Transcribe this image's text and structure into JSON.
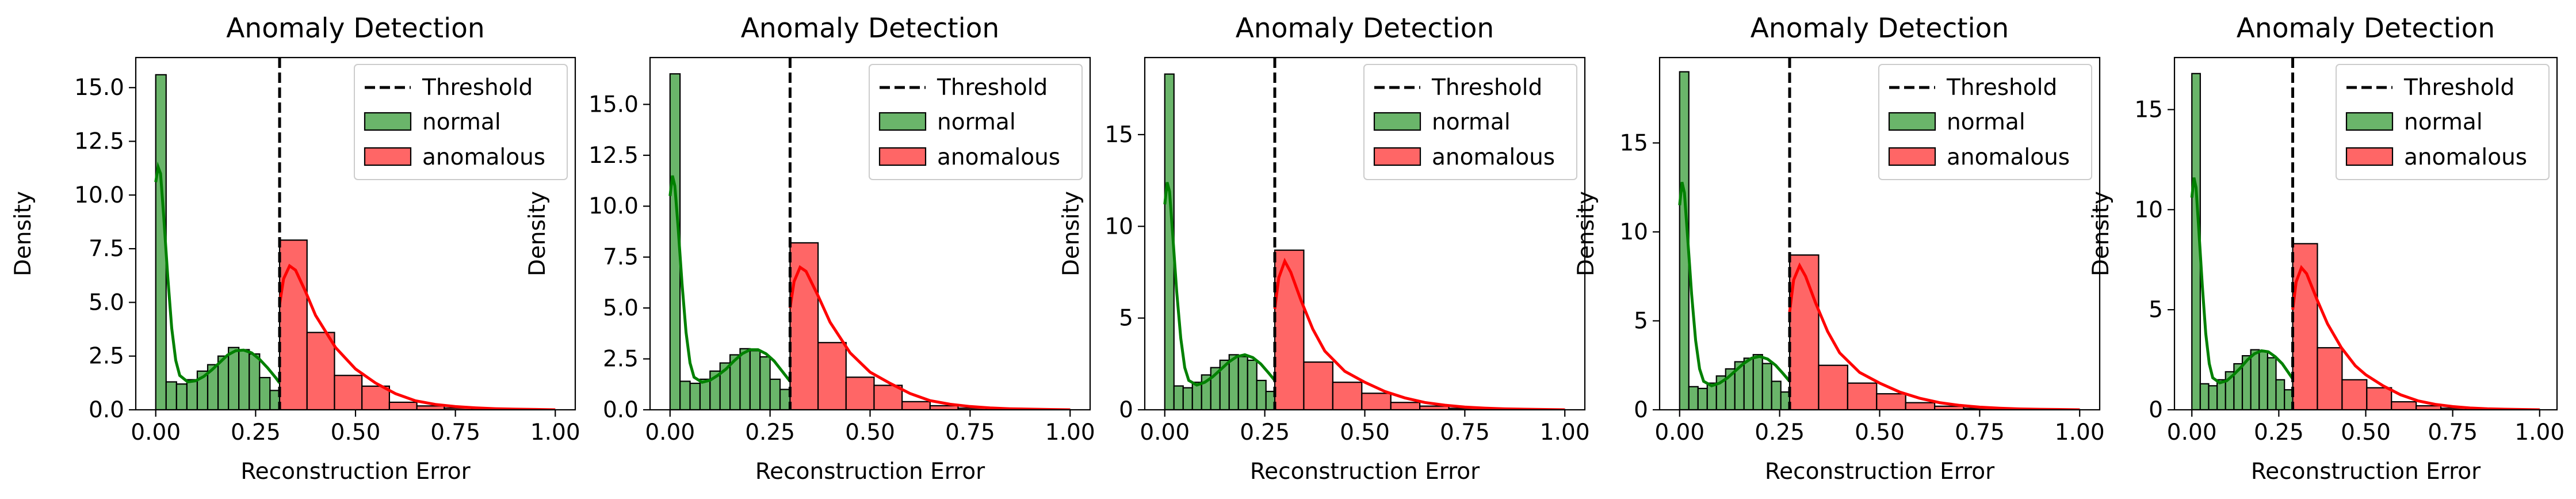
{
  "colors": {
    "normal_fill": "#6ab56a",
    "normal_edge": "#000000",
    "normal_kde": "#008000",
    "anomalous_fill": "#ff6666",
    "anomalous_edge": "#000000",
    "anomalous_kde": "#ff0000",
    "threshold": "#000000",
    "legend_border": "#cccccc"
  },
  "chart_data": [
    {
      "type": "histogram",
      "title": "Anomaly Detection",
      "xlabel": "Reconstruction Error",
      "ylabel": "Density",
      "xlim": [
        -0.05,
        1.05
      ],
      "ylim": [
        0,
        16.4
      ],
      "xticks": [
        "0.00",
        "0.25",
        "0.50",
        "0.75",
        "1.00"
      ],
      "yticks": [
        "0.0",
        "2.5",
        "5.0",
        "7.5",
        "10.0",
        "12.5",
        "15.0"
      ],
      "ytick_values": [
        0,
        2.5,
        5.0,
        7.5,
        10.0,
        12.5,
        15.0
      ],
      "threshold": 0.31,
      "legend": {
        "position": "upper right",
        "entries": [
          "Threshold",
          "normal",
          "anomalous"
        ]
      },
      "normal": {
        "name": "normal",
        "bin_width": 0.026,
        "bin_start": 0.0,
        "values": [
          15.6,
          1.3,
          1.2,
          1.4,
          1.8,
          2.1,
          2.5,
          2.9,
          2.8,
          2.6,
          1.5,
          0.9
        ],
        "kde": [
          [
            0.0,
            10.6
          ],
          [
            0.006,
            11.3
          ],
          [
            0.012,
            11.0
          ],
          [
            0.02,
            9.0
          ],
          [
            0.03,
            6.2
          ],
          [
            0.04,
            3.8
          ],
          [
            0.05,
            2.3
          ],
          [
            0.06,
            1.6
          ],
          [
            0.08,
            1.3
          ],
          [
            0.1,
            1.35
          ],
          [
            0.12,
            1.55
          ],
          [
            0.14,
            1.85
          ],
          [
            0.16,
            2.2
          ],
          [
            0.18,
            2.55
          ],
          [
            0.2,
            2.75
          ],
          [
            0.22,
            2.78
          ],
          [
            0.24,
            2.65
          ],
          [
            0.26,
            2.35
          ],
          [
            0.28,
            1.95
          ],
          [
            0.3,
            1.5
          ],
          [
            0.31,
            1.25
          ]
        ]
      },
      "anomalous": {
        "name": "anomalous",
        "bin_width": 0.0687,
        "bin_start": 0.31,
        "values": [
          7.9,
          3.6,
          1.6,
          1.1,
          0.35,
          0.18,
          0.08,
          0.04,
          0.02,
          0.01
        ],
        "kde": [
          [
            0.31,
            4.9
          ],
          [
            0.32,
            6.1
          ],
          [
            0.335,
            6.7
          ],
          [
            0.35,
            6.5
          ],
          [
            0.375,
            5.5
          ],
          [
            0.4,
            4.4
          ],
          [
            0.45,
            2.9
          ],
          [
            0.5,
            1.9
          ],
          [
            0.55,
            1.25
          ],
          [
            0.6,
            0.75
          ],
          [
            0.65,
            0.42
          ],
          [
            0.7,
            0.25
          ],
          [
            0.75,
            0.15
          ],
          [
            0.8,
            0.09
          ],
          [
            0.85,
            0.05
          ],
          [
            0.9,
            0.03
          ],
          [
            0.95,
            0.015
          ],
          [
            1.0,
            0.0
          ]
        ]
      }
    },
    {
      "type": "histogram",
      "title": "Anomaly Detection",
      "xlabel": "Reconstruction Error",
      "ylabel": "Density",
      "xlim": [
        -0.05,
        1.05
      ],
      "ylim": [
        0,
        17.3
      ],
      "xticks": [
        "0.00",
        "0.25",
        "0.50",
        "0.75",
        "1.00"
      ],
      "yticks": [
        "0.0",
        "2.5",
        "5.0",
        "7.5",
        "10.0",
        "12.5",
        "15.0"
      ],
      "ytick_values": [
        0,
        2.5,
        5.0,
        7.5,
        10.0,
        12.5,
        15.0
      ],
      "threshold": 0.3,
      "legend": {
        "position": "upper right",
        "entries": [
          "Threshold",
          "normal",
          "anomalous"
        ]
      },
      "normal": {
        "name": "normal",
        "bin_width": 0.025,
        "bin_start": 0.0,
        "values": [
          16.5,
          1.4,
          1.3,
          1.5,
          1.9,
          2.3,
          2.7,
          3.0,
          2.9,
          2.6,
          1.5,
          1.0
        ],
        "kde": [
          [
            0.0,
            10.5
          ],
          [
            0.006,
            11.5
          ],
          [
            0.012,
            11.0
          ],
          [
            0.02,
            9.0
          ],
          [
            0.03,
            6.2
          ],
          [
            0.04,
            3.8
          ],
          [
            0.05,
            2.3
          ],
          [
            0.06,
            1.6
          ],
          [
            0.08,
            1.35
          ],
          [
            0.1,
            1.45
          ],
          [
            0.12,
            1.7
          ],
          [
            0.14,
            2.0
          ],
          [
            0.16,
            2.4
          ],
          [
            0.18,
            2.75
          ],
          [
            0.2,
            2.95
          ],
          [
            0.22,
            2.95
          ],
          [
            0.24,
            2.75
          ],
          [
            0.26,
            2.4
          ],
          [
            0.28,
            1.9
          ],
          [
            0.3,
            1.4
          ]
        ]
      },
      "anomalous": {
        "name": "anomalous",
        "bin_width": 0.07,
        "bin_start": 0.3,
        "values": [
          8.2,
          3.3,
          1.6,
          1.2,
          0.4,
          0.2,
          0.08,
          0.04,
          0.02,
          0.01
        ],
        "kde": [
          [
            0.3,
            5.0
          ],
          [
            0.31,
            6.3
          ],
          [
            0.325,
            7.0
          ],
          [
            0.34,
            6.8
          ],
          [
            0.37,
            5.6
          ],
          [
            0.4,
            4.3
          ],
          [
            0.45,
            2.8
          ],
          [
            0.5,
            1.85
          ],
          [
            0.55,
            1.3
          ],
          [
            0.6,
            0.8
          ],
          [
            0.65,
            0.45
          ],
          [
            0.7,
            0.27
          ],
          [
            0.75,
            0.16
          ],
          [
            0.8,
            0.09
          ],
          [
            0.85,
            0.05
          ],
          [
            0.9,
            0.03
          ],
          [
            0.95,
            0.015
          ],
          [
            1.0,
            0.0
          ]
        ]
      }
    },
    {
      "type": "histogram",
      "title": "Anomaly Detection",
      "xlabel": "Reconstruction Error",
      "ylabel": "Density",
      "xlim": [
        -0.05,
        1.05
      ],
      "ylim": [
        0,
        19.2
      ],
      "xticks": [
        "0.00",
        "0.25",
        "0.50",
        "0.75",
        "1.00"
      ],
      "yticks": [
        "0",
        "5",
        "10",
        "15"
      ],
      "ytick_values": [
        0,
        5,
        10,
        15
      ],
      "threshold": 0.275,
      "legend": {
        "position": "upper right",
        "entries": [
          "Threshold",
          "normal",
          "anomalous"
        ]
      },
      "normal": {
        "name": "normal",
        "bin_width": 0.023,
        "bin_start": 0.0,
        "values": [
          18.3,
          1.3,
          1.2,
          1.5,
          1.9,
          2.3,
          2.7,
          3.0,
          2.9,
          2.7,
          1.6,
          1.0
        ],
        "kde": [
          [
            0.0,
            11.2
          ],
          [
            0.006,
            12.4
          ],
          [
            0.012,
            11.9
          ],
          [
            0.02,
            9.5
          ],
          [
            0.03,
            6.4
          ],
          [
            0.04,
            3.9
          ],
          [
            0.05,
            2.3
          ],
          [
            0.06,
            1.6
          ],
          [
            0.08,
            1.35
          ],
          [
            0.1,
            1.5
          ],
          [
            0.12,
            1.8
          ],
          [
            0.14,
            2.2
          ],
          [
            0.16,
            2.6
          ],
          [
            0.18,
            2.9
          ],
          [
            0.2,
            3.0
          ],
          [
            0.22,
            2.85
          ],
          [
            0.24,
            2.5
          ],
          [
            0.26,
            2.0
          ],
          [
            0.275,
            1.6
          ]
        ]
      },
      "anomalous": {
        "name": "anomalous",
        "bin_width": 0.0725,
        "bin_start": 0.275,
        "values": [
          8.7,
          2.6,
          1.5,
          0.9,
          0.4,
          0.2,
          0.08,
          0.04,
          0.02,
          0.01
        ],
        "kde": [
          [
            0.275,
            5.5
          ],
          [
            0.285,
            7.2
          ],
          [
            0.3,
            8.1
          ],
          [
            0.315,
            7.5
          ],
          [
            0.34,
            6.0
          ],
          [
            0.37,
            4.4
          ],
          [
            0.4,
            3.2
          ],
          [
            0.45,
            2.1
          ],
          [
            0.5,
            1.5
          ],
          [
            0.55,
            1.0
          ],
          [
            0.6,
            0.65
          ],
          [
            0.65,
            0.4
          ],
          [
            0.7,
            0.25
          ],
          [
            0.75,
            0.15
          ],
          [
            0.8,
            0.09
          ],
          [
            0.85,
            0.05
          ],
          [
            0.9,
            0.03
          ],
          [
            0.95,
            0.015
          ],
          [
            1.0,
            0.0
          ]
        ]
      }
    },
    {
      "type": "histogram",
      "title": "Anomaly Detection",
      "xlabel": "Reconstruction Error",
      "ylabel": "Density",
      "xlim": [
        -0.05,
        1.05
      ],
      "ylim": [
        0,
        19.8
      ],
      "xticks": [
        "0.00",
        "0.25",
        "0.50",
        "0.75",
        "1.00"
      ],
      "yticks": [
        "0",
        "5",
        "10",
        "15"
      ],
      "ytick_values": [
        0,
        5,
        10,
        15
      ],
      "threshold": 0.275,
      "legend": {
        "position": "upper right",
        "entries": [
          "Threshold",
          "normal",
          "anomalous"
        ]
      },
      "normal": {
        "name": "normal",
        "bin_width": 0.023,
        "bin_start": 0.0,
        "values": [
          19.0,
          1.3,
          1.2,
          1.5,
          1.9,
          2.3,
          2.7,
          2.9,
          3.1,
          2.6,
          1.6,
          1.0
        ],
        "kde": [
          [
            0.0,
            11.5
          ],
          [
            0.006,
            12.8
          ],
          [
            0.012,
            12.2
          ],
          [
            0.02,
            9.7
          ],
          [
            0.03,
            6.5
          ],
          [
            0.04,
            3.9
          ],
          [
            0.05,
            2.3
          ],
          [
            0.06,
            1.6
          ],
          [
            0.08,
            1.35
          ],
          [
            0.1,
            1.5
          ],
          [
            0.12,
            1.8
          ],
          [
            0.14,
            2.2
          ],
          [
            0.16,
            2.6
          ],
          [
            0.18,
            2.9
          ],
          [
            0.2,
            3.0
          ],
          [
            0.22,
            2.85
          ],
          [
            0.24,
            2.5
          ],
          [
            0.26,
            2.0
          ],
          [
            0.275,
            1.6
          ]
        ]
      },
      "anomalous": {
        "name": "anomalous",
        "bin_width": 0.0725,
        "bin_start": 0.275,
        "values": [
          8.7,
          2.5,
          1.5,
          0.9,
          0.4,
          0.2,
          0.08,
          0.04,
          0.02,
          0.01
        ],
        "kde": [
          [
            0.275,
            5.5
          ],
          [
            0.285,
            7.3
          ],
          [
            0.3,
            8.1
          ],
          [
            0.315,
            7.5
          ],
          [
            0.34,
            6.0
          ],
          [
            0.37,
            4.4
          ],
          [
            0.4,
            3.2
          ],
          [
            0.45,
            2.1
          ],
          [
            0.5,
            1.5
          ],
          [
            0.55,
            1.0
          ],
          [
            0.6,
            0.65
          ],
          [
            0.65,
            0.4
          ],
          [
            0.7,
            0.25
          ],
          [
            0.75,
            0.15
          ],
          [
            0.8,
            0.09
          ],
          [
            0.85,
            0.05
          ],
          [
            0.9,
            0.03
          ],
          [
            0.95,
            0.015
          ],
          [
            1.0,
            0.0
          ]
        ]
      }
    },
    {
      "type": "histogram",
      "title": "Anomaly Detection",
      "xlabel": "Reconstruction Error",
      "ylabel": "Density",
      "xlim": [
        -0.05,
        1.05
      ],
      "ylim": [
        0,
        17.6
      ],
      "xticks": [
        "0.00",
        "0.25",
        "0.50",
        "0.75",
        "1.00"
      ],
      "yticks": [
        "0",
        "5",
        "10",
        "15"
      ],
      "ytick_values": [
        0,
        5,
        10,
        15
      ],
      "threshold": 0.29,
      "legend": {
        "position": "upper right",
        "entries": [
          "Threshold",
          "normal",
          "anomalous"
        ]
      },
      "normal": {
        "name": "normal",
        "bin_width": 0.0242,
        "bin_start": 0.0,
        "values": [
          16.8,
          1.3,
          1.2,
          1.5,
          1.9,
          2.3,
          2.7,
          3.0,
          2.9,
          2.6,
          1.5,
          1.0
        ],
        "kde": [
          [
            0.0,
            10.6
          ],
          [
            0.006,
            11.6
          ],
          [
            0.012,
            11.1
          ],
          [
            0.02,
            9.0
          ],
          [
            0.03,
            6.2
          ],
          [
            0.04,
            3.8
          ],
          [
            0.05,
            2.3
          ],
          [
            0.06,
            1.6
          ],
          [
            0.08,
            1.35
          ],
          [
            0.1,
            1.45
          ],
          [
            0.12,
            1.75
          ],
          [
            0.14,
            2.1
          ],
          [
            0.16,
            2.5
          ],
          [
            0.18,
            2.8
          ],
          [
            0.2,
            2.95
          ],
          [
            0.22,
            2.9
          ],
          [
            0.24,
            2.65
          ],
          [
            0.26,
            2.3
          ],
          [
            0.28,
            1.8
          ],
          [
            0.29,
            1.55
          ]
        ]
      },
      "anomalous": {
        "name": "anomalous",
        "bin_width": 0.071,
        "bin_start": 0.29,
        "values": [
          8.3,
          3.1,
          1.5,
          1.1,
          0.4,
          0.2,
          0.08,
          0.04,
          0.02,
          0.01
        ],
        "kde": [
          [
            0.29,
            5.0
          ],
          [
            0.3,
            6.4
          ],
          [
            0.315,
            7.1
          ],
          [
            0.33,
            6.8
          ],
          [
            0.36,
            5.5
          ],
          [
            0.39,
            4.3
          ],
          [
            0.43,
            3.1
          ],
          [
            0.47,
            2.2
          ],
          [
            0.5,
            1.75
          ],
          [
            0.55,
            1.2
          ],
          [
            0.6,
            0.75
          ],
          [
            0.65,
            0.45
          ],
          [
            0.7,
            0.27
          ],
          [
            0.75,
            0.16
          ],
          [
            0.8,
            0.09
          ],
          [
            0.85,
            0.05
          ],
          [
            0.9,
            0.03
          ],
          [
            0.95,
            0.015
          ],
          [
            1.0,
            0.0
          ]
        ]
      }
    }
  ]
}
